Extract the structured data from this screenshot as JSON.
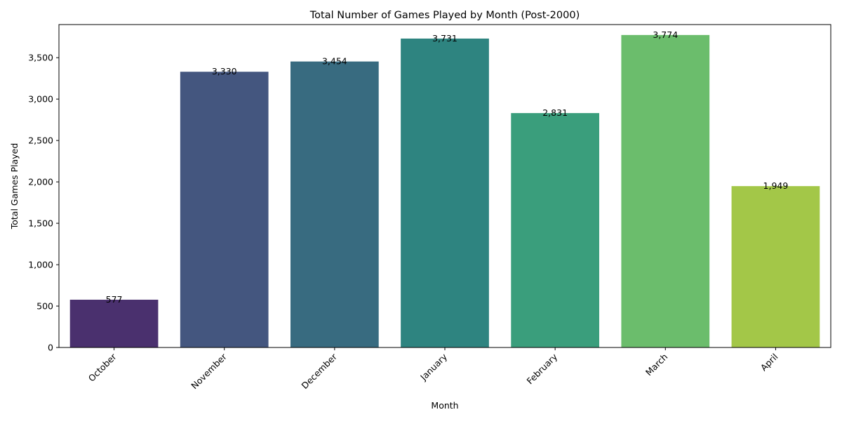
{
  "chart_data": {
    "type": "bar",
    "title": "Total Number of Games Played by Month (Post-2000)",
    "xlabel": "Month",
    "ylabel": "Total Games Played",
    "categories": [
      "October",
      "November",
      "December",
      "January",
      "February",
      "March",
      "April"
    ],
    "values": [
      577,
      3330,
      3454,
      3731,
      2831,
      3774,
      1949
    ],
    "data_labels": [
      "577",
      "3,330",
      "3,454",
      "3,731",
      "2,831",
      "3,774",
      "1,949"
    ],
    "colors": [
      "#4a306e",
      "#44567f",
      "#386b80",
      "#2e8480",
      "#3a9e7c",
      "#6bbd6c",
      "#a3c748"
    ],
    "ylim": [
      0,
      3900
    ],
    "yticks": [
      0,
      500,
      1000,
      1500,
      2000,
      2500,
      3000,
      3500
    ],
    "ytick_labels": [
      "0",
      "500",
      "1,000",
      "1,500",
      "2,000",
      "2,500",
      "3,000",
      "3,500"
    ],
    "grid": false,
    "legend": "none"
  }
}
